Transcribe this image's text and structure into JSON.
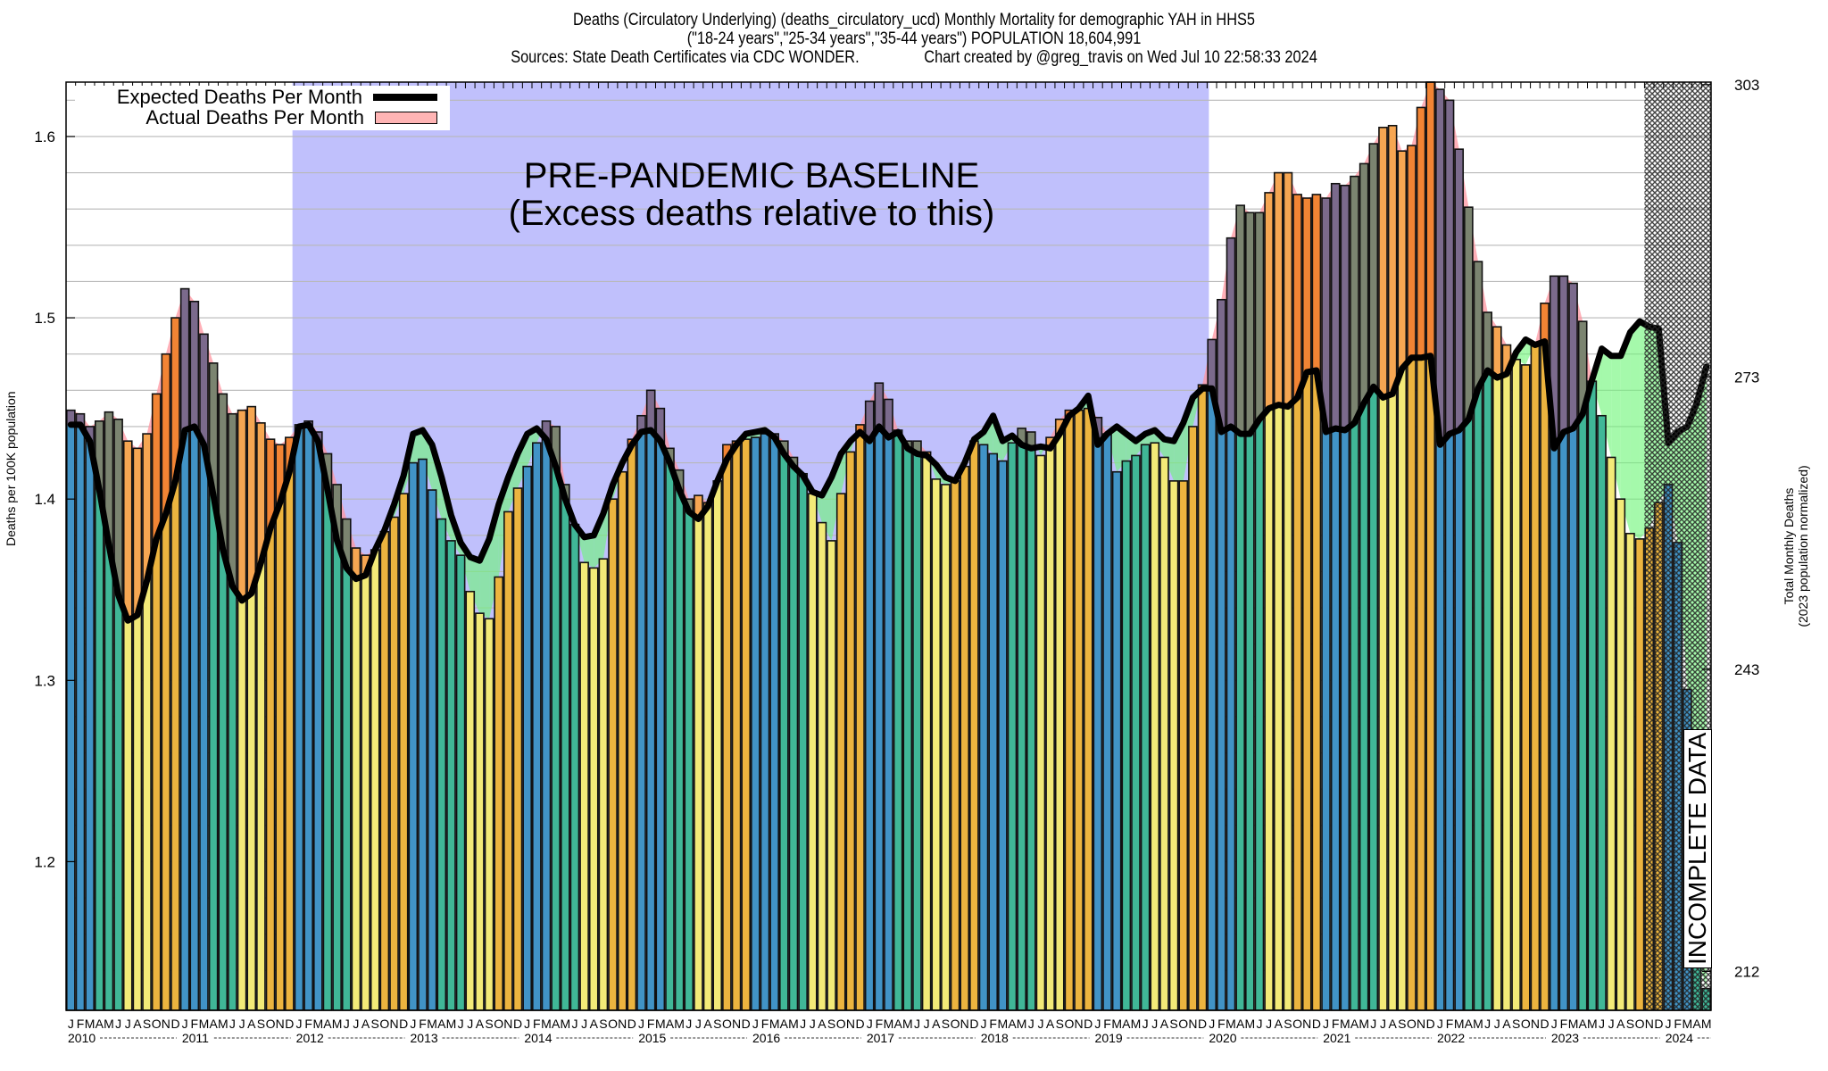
{
  "chart_data": {
    "type": "bar",
    "title": "Deaths (Circulatory Underlying) (deaths_circulatory_ucd) Monthly Mortality for demographic YAH in HHS5",
    "subtitle": "(\"18-24 years\",\"25-34 years\",\"35-44 years\") POPULATION 18,604,991",
    "source": "Sources: State Death Certificates via CDC WONDER.",
    "credit": "Chart created by @greg_travis on Wed Jul 10 22:58:33 2024",
    "ylabel": "Deaths per 100K population",
    "y2label_line1": "Total Monthly Deaths",
    "y2label_line2": "(2023 population normalized)",
    "xlabel": "",
    "ylim": [
      1.118,
      1.63
    ],
    "yticks": [
      "1.2",
      "1.3",
      "1.4",
      "1.5",
      "1.6"
    ],
    "ytick_values": [
      1.2,
      1.3,
      1.4,
      1.5,
      1.6
    ],
    "y2ticks": [
      "212",
      "243",
      "273",
      "303"
    ],
    "y2tick_values": [
      212,
      243,
      273,
      303
    ],
    "population_per_100k": 186.05,
    "grid": true,
    "legend_position": "top-left",
    "legend": [
      {
        "label": "Expected Deaths Per Month",
        "style": "line",
        "color": "#000000"
      },
      {
        "label": "Actual Deaths Per Month",
        "style": "box",
        "color": "#ffb4b4"
      }
    ],
    "annotations": {
      "baseline_line1": "PRE-PANDEMIC BASELINE",
      "baseline_line2": "(Excess deaths relative to this)",
      "baseline_start": "2012-01",
      "baseline_end": "2019-12",
      "incomplete_label": "INCOMPLETE DATA",
      "incomplete_start": "2023-11"
    },
    "month_letters": [
      "J",
      "F",
      "M",
      "A",
      "M",
      "J",
      "J",
      "A",
      "S",
      "O",
      "N",
      "D"
    ],
    "years": [
      "2010",
      "2011",
      "2012",
      "2013",
      "2014",
      "2015",
      "2016",
      "2017",
      "2018",
      "2019",
      "2020",
      "2021",
      "2022",
      "2023",
      "2024"
    ],
    "start": "2010-01",
    "end": "2024-05",
    "quarter_colors": {
      "Q1": "#4193c6",
      "Q2": "#40b797",
      "Q3": "#f3ea78",
      "Q4": "#ecb43f"
    },
    "excess_colors": {
      "Q1": "#7b6a8c",
      "Q2": "#7b8470",
      "Q3": "#f6a652",
      "Q4": "#f28434"
    },
    "deficit_color": "#80f080",
    "baseline_color": "#c0c0fc",
    "series": [
      {
        "name": "Actual Deaths Per Month",
        "values": [
          1.449,
          1.447,
          1.44,
          1.443,
          1.448,
          1.444,
          1.432,
          1.428,
          1.436,
          1.458,
          1.48,
          1.5,
          1.516,
          1.509,
          1.491,
          1.475,
          1.458,
          1.447,
          1.449,
          1.451,
          1.442,
          1.433,
          1.43,
          1.434,
          1.441,
          1.443,
          1.437,
          1.425,
          1.408,
          1.389,
          1.373,
          1.369,
          1.372,
          1.382,
          1.39,
          1.403,
          1.42,
          1.422,
          1.405,
          1.389,
          1.377,
          1.369,
          1.349,
          1.337,
          1.334,
          1.357,
          1.393,
          1.406,
          1.418,
          1.431,
          1.443,
          1.44,
          1.408,
          1.386,
          1.365,
          1.362,
          1.367,
          1.4,
          1.415,
          1.433,
          1.446,
          1.46,
          1.45,
          1.428,
          1.416,
          1.4,
          1.402,
          1.398,
          1.41,
          1.43,
          1.432,
          1.433,
          1.434,
          1.436,
          1.436,
          1.432,
          1.423,
          1.414,
          1.403,
          1.387,
          1.377,
          1.403,
          1.426,
          1.441,
          1.454,
          1.464,
          1.455,
          1.438,
          1.432,
          1.432,
          1.426,
          1.411,
          1.408,
          1.41,
          1.418,
          1.432,
          1.43,
          1.425,
          1.421,
          1.431,
          1.439,
          1.437,
          1.424,
          1.434,
          1.444,
          1.449,
          1.449,
          1.45,
          1.445,
          1.436,
          1.415,
          1.421,
          1.424,
          1.43,
          1.431,
          1.423,
          1.41,
          1.41,
          1.44,
          1.463,
          1.488,
          1.51,
          1.544,
          1.562,
          1.558,
          1.558,
          1.569,
          1.58,
          1.58,
          1.568,
          1.566,
          1.568,
          1.566,
          1.574,
          1.573,
          1.578,
          1.585,
          1.596,
          1.605,
          1.606,
          1.592,
          1.595,
          1.616,
          1.63,
          1.626,
          1.62,
          1.593,
          1.561,
          1.531,
          1.503,
          1.495,
          1.485,
          1.477,
          1.474,
          1.486,
          1.508,
          1.523,
          1.523,
          1.519,
          1.498,
          1.465,
          1.446,
          1.423,
          1.4,
          1.381,
          1.378,
          1.384,
          1.398,
          1.408,
          1.376,
          1.295,
          1.15,
          1.13
        ]
      },
      {
        "name": "Expected Deaths Per Month",
        "values": [
          1.441,
          1.441,
          1.432,
          1.405,
          1.375,
          1.347,
          1.333,
          1.336,
          1.355,
          1.378,
          1.392,
          1.41,
          1.438,
          1.44,
          1.43,
          1.402,
          1.372,
          1.352,
          1.344,
          1.348,
          1.365,
          1.384,
          1.398,
          1.415,
          1.44,
          1.441,
          1.432,
          1.405,
          1.377,
          1.362,
          1.356,
          1.358,
          1.372,
          1.383,
          1.397,
          1.413,
          1.436,
          1.438,
          1.43,
          1.412,
          1.391,
          1.376,
          1.368,
          1.366,
          1.378,
          1.397,
          1.412,
          1.425,
          1.436,
          1.439,
          1.433,
          1.418,
          1.4,
          1.386,
          1.379,
          1.38,
          1.392,
          1.408,
          1.42,
          1.43,
          1.437,
          1.438,
          1.432,
          1.42,
          1.405,
          1.393,
          1.389,
          1.396,
          1.41,
          1.422,
          1.43,
          1.436,
          1.437,
          1.438,
          1.434,
          1.425,
          1.418,
          1.413,
          1.404,
          1.402,
          1.412,
          1.425,
          1.432,
          1.437,
          1.432,
          1.44,
          1.434,
          1.437,
          1.428,
          1.425,
          1.424,
          1.419,
          1.412,
          1.41,
          1.42,
          1.433,
          1.437,
          1.446,
          1.432,
          1.435,
          1.43,
          1.428,
          1.429,
          1.428,
          1.436,
          1.446,
          1.45,
          1.457,
          1.43,
          1.436,
          1.44,
          1.436,
          1.432,
          1.436,
          1.438,
          1.433,
          1.432,
          1.442,
          1.456,
          1.461,
          1.461,
          1.437,
          1.44,
          1.436,
          1.436,
          1.444,
          1.45,
          1.452,
          1.451,
          1.456,
          1.47,
          1.471,
          1.437,
          1.439,
          1.438,
          1.442,
          1.453,
          1.462,
          1.456,
          1.458,
          1.472,
          1.478,
          1.478,
          1.479,
          1.43,
          1.436,
          1.438,
          1.444,
          1.461,
          1.471,
          1.467,
          1.469,
          1.481,
          1.488,
          1.485,
          1.487,
          1.428,
          1.437,
          1.439,
          1.447,
          1.466,
          1.483,
          1.479,
          1.479,
          1.492,
          1.498,
          1.495,
          1.494,
          1.431,
          1.437,
          1.44,
          1.453,
          1.473
        ]
      }
    ]
  }
}
